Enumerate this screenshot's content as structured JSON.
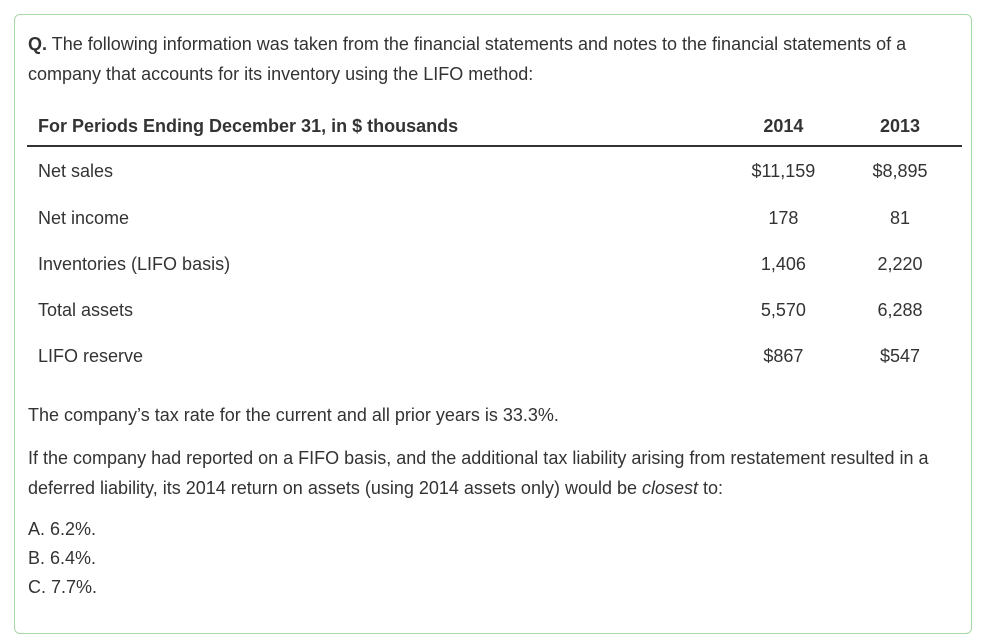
{
  "question": {
    "label": "Q.",
    "text": "The following information was taken from the financial statements and notes to the financial statements of a company that accounts for its inventory using the LIFO method:"
  },
  "table": {
    "headers": [
      "For Periods Ending December 31, in $ thousands",
      "2014",
      "2013"
    ],
    "rows": [
      [
        "Net sales",
        "$11,159",
        "$8,895"
      ],
      [
        "Net income",
        "178",
        "81"
      ],
      [
        "Inventories (LIFO basis)",
        "1,406",
        "2,220"
      ],
      [
        "Total assets",
        "5,570",
        "6,288"
      ],
      [
        "LIFO reserve",
        "$867",
        "$547"
      ]
    ]
  },
  "paragraphs": {
    "tax_rate": "The company’s tax rate for the current and all prior years is 33.3%.",
    "prompt_before": "If the company had reported on a FIFO basis, and the additional tax liability arising from restatement resulted in a deferred liability, its 2014 return on assets (using 2014 assets only) would be ",
    "prompt_emphasis": "closest",
    "prompt_after": " to:"
  },
  "options": [
    "A. 6.2%.",
    "B. 6.4%.",
    "C. 7.7%."
  ],
  "colors": {
    "card_border": "#a6d9a6",
    "text": "#333333"
  }
}
